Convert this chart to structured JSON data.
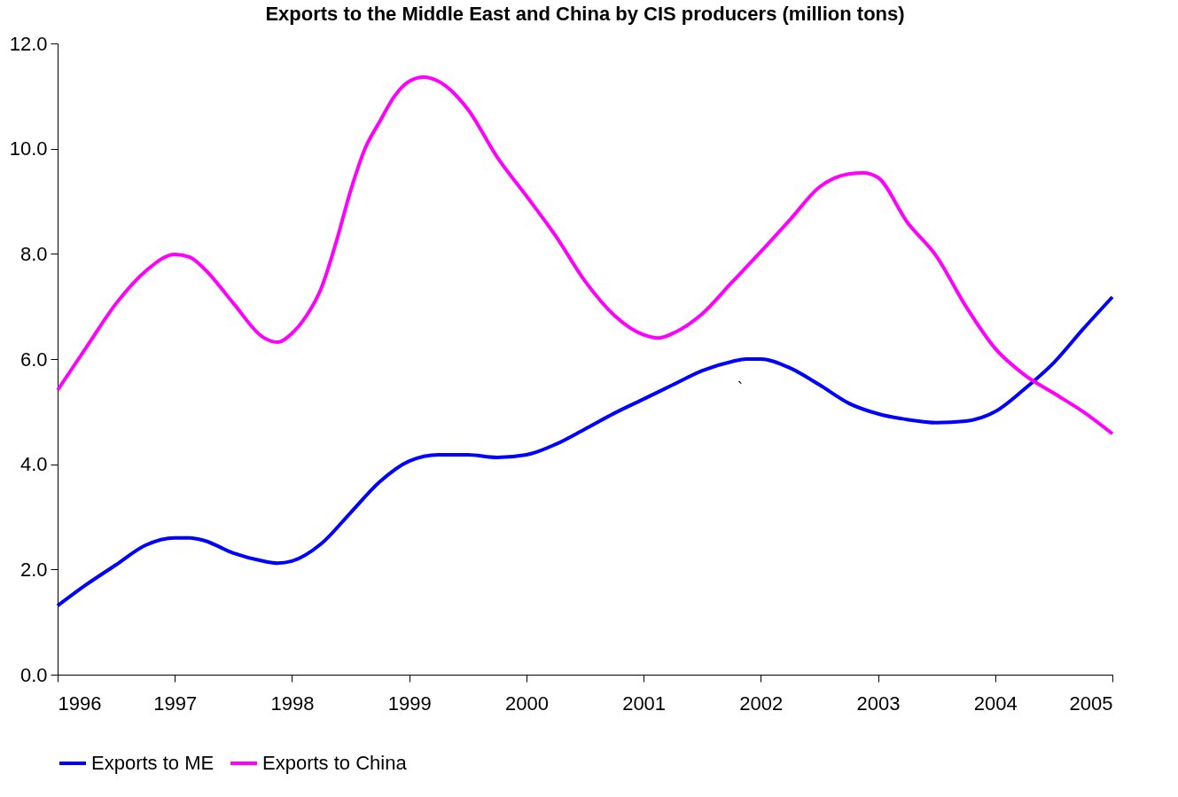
{
  "chart_data": {
    "type": "line",
    "title": "Exports to the Middle East and China by CIS producers (million tons)",
    "xlim": [
      1996,
      2005
    ],
    "xticks": [
      1996,
      1997,
      1998,
      1999,
      2000,
      2001,
      2002,
      2003,
      2004,
      2005
    ],
    "ylim": [
      0,
      12
    ],
    "yticks": [
      {
        "value": 0,
        "label": "0.0"
      },
      {
        "value": 2,
        "label": "2.0"
      },
      {
        "value": 4,
        "label": "4.0"
      },
      {
        "value": 6,
        "label": "6.0"
      },
      {
        "value": 8,
        "label": "8.0"
      },
      {
        "value": 10,
        "label": "10.0"
      },
      {
        "value": 12,
        "label": "12.0"
      }
    ],
    "grid": false,
    "legend": "bottom",
    "marker": "none",
    "line_style": "solid",
    "annotations": [
      "`"
    ],
    "series": [
      {
        "name": "Exports to ME",
        "color": "#0000ff",
        "x": [
          1996,
          1996.25,
          1996.5,
          1996.75,
          1997,
          1997.125,
          1997.25,
          1997.5,
          1997.75,
          1997.875,
          1998,
          1998.25,
          1998.5,
          1998.75,
          1999,
          1999.25,
          1999.5,
          1999.75,
          2000,
          2000.25,
          2000.5,
          2000.75,
          2001,
          2001.25,
          2001.5,
          2001.75,
          2001.875,
          2002,
          2002.25,
          2002.5,
          2002.75,
          2003,
          2003.25,
          2003.5,
          2003.75,
          2004,
          2004.25,
          2004.5,
          2004.75,
          2005
        ],
        "values": [
          1.31,
          1.72,
          2.09,
          2.46,
          2.6,
          2.6,
          2.55,
          2.31,
          2.16,
          2.12,
          2.16,
          2.49,
          3.08,
          3.67,
          4.06,
          4.18,
          4.18,
          4.13,
          4.18,
          4.38,
          4.67,
          4.97,
          5.24,
          5.51,
          5.78,
          5.95,
          6.0,
          6.0,
          5.83,
          5.51,
          5.16,
          4.96,
          4.85,
          4.79,
          4.82,
          5.0,
          5.43,
          5.93,
          6.57,
          7.18
        ]
      },
      {
        "name": "Exports to China",
        "color": "#ff00ff",
        "x": [
          1996,
          1996.25,
          1996.5,
          1996.75,
          1997,
          1997.125,
          1997.25,
          1997.5,
          1997.75,
          1997.875,
          1998,
          1998.125,
          1998.25,
          1998.375,
          1998.5,
          1998.625,
          1998.75,
          1998.875,
          1999,
          1999.125,
          1999.25,
          1999.5,
          1999.75,
          2000,
          2000.25,
          2000.5,
          2000.75,
          2001,
          2001.125,
          2001.25,
          2001.5,
          2001.75,
          2002,
          2002.25,
          2002.5,
          2002.75,
          2002.875,
          2003,
          2003.25,
          2003.5,
          2003.75,
          2004,
          2004.25,
          2004.5,
          2004.75,
          2005
        ],
        "values": [
          5.41,
          6.24,
          7.06,
          7.67,
          7.99,
          7.94,
          7.72,
          7.06,
          6.42,
          6.32,
          6.49,
          6.83,
          7.35,
          8.21,
          9.2,
          10.01,
          10.52,
          11.0,
          11.28,
          11.36,
          11.28,
          10.75,
          9.84,
          9.1,
          8.34,
          7.48,
          6.83,
          6.46,
          6.4,
          6.49,
          6.86,
          7.45,
          8.04,
          8.65,
          9.27,
          9.52,
          9.54,
          9.45,
          8.6,
          7.95,
          7.0,
          6.2,
          5.7,
          5.35,
          5.0,
          4.58
        ]
      }
    ]
  }
}
